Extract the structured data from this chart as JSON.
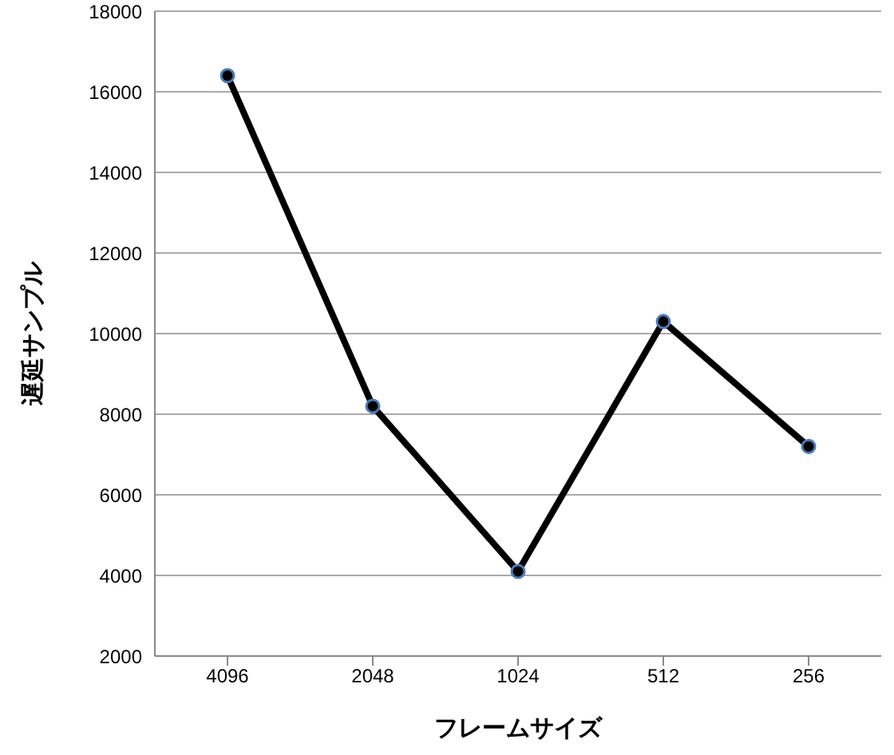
{
  "chart_data": {
    "type": "line",
    "xlabel": "フレームサイズ",
    "ylabel": "遅延サンプル",
    "categories": [
      "4096",
      "2048",
      "1024",
      "512",
      "256"
    ],
    "series": [
      {
        "color": "#000000",
        "values": [
          16400,
          8200,
          4100,
          10300,
          7200
        ]
      }
    ],
    "ylim": [
      2000,
      18000
    ],
    "yticks": [
      2000,
      4000,
      6000,
      8000,
      10000,
      12000,
      14000,
      16000,
      18000
    ],
    "grid": "y",
    "marker": "circle",
    "line_style": "solid"
  }
}
